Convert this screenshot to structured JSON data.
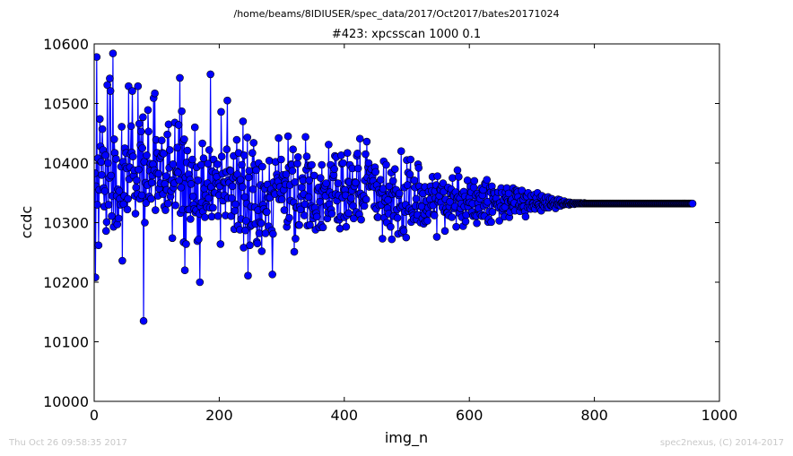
{
  "figure": {
    "suptitle": "/home/beams/8IDIUSER/spec_data/2017/Oct2017/bates20171024",
    "footer_left": "Thu Oct 26 09:58:35 2017",
    "footer_right": "spec2nexus, (C) 2014-2017"
  },
  "chart_data": {
    "type": "line",
    "title": "#423: xpcsscan 1000 0.1",
    "xlabel": "img_n",
    "ylabel": "ccdc",
    "xlim": [
      0,
      1000
    ],
    "ylim": [
      10000,
      10600
    ],
    "x_ticks": [
      0,
      200,
      400,
      600,
      800,
      1000
    ],
    "y_ticks": [
      10000,
      10100,
      10200,
      10300,
      10400,
      10500,
      10600
    ],
    "x_tick_labels": [
      "0",
      "200",
      "400",
      "600",
      "800",
      "1000"
    ],
    "y_tick_labels": [
      "10000",
      "10100",
      "10200",
      "10300",
      "10400",
      "10500",
      "10600"
    ],
    "grid": false,
    "legend": "none",
    "series": [
      {
        "color": "#0000ff",
        "marker": "circle",
        "x_start": 0,
        "x_step": 1,
        "y": [
          10262,
          10383,
          10208,
          10361,
          10578,
          10330,
          10408,
          10262,
          10355,
          10474,
          10428,
          10402,
          10380,
          10457,
          10422,
          10358,
          10327,
          10353,
          10413,
          10286,
          10301,
          10531,
          10400,
          10330,
          10375,
          10542,
          10521,
          10379,
          10311,
          10345,
          10584,
          10293,
          10440,
          10417,
          10301,
          10407,
          10345,
          10297,
          10356,
          10307,
          10353,
          10340,
          10330,
          10394,
          10461,
          10236,
          10402,
          10331,
          10345,
          10425,
          10394,
          10417,
          10391,
          10322,
          10340,
          10529,
          10373,
          10393,
          10415,
          10462,
          10418,
          10521,
          10411,
          10379,
          10388,
          10345,
          10315,
          10359,
          10371,
          10348,
          10529,
          10389,
          10466,
          10340,
          10430,
          10453,
          10346,
          10425,
          10477,
          10135,
          10402,
          10300,
          10367,
          10333,
          10413,
          10363,
          10489,
          10453,
          10344,
          10387,
          10399,
          10340,
          10367,
          10379,
          10398,
          10509,
          10388,
          10517,
          10321,
          10439,
          10383,
          10417,
          10345,
          10382,
          10357,
          10408,
          10366,
          10412,
          10438,
          10417,
          10348,
          10416,
          10327,
          10365,
          10321,
          10378,
          10355,
          10448,
          10332,
          10465,
          10392,
          10422,
          10344,
          10353,
          10371,
          10274,
          10398,
          10359,
          10366,
          10468,
          10329,
          10385,
          10386,
          10426,
          10384,
          10464,
          10371,
          10543,
          10316,
          10359,
          10487,
          10322,
          10436,
          10267,
          10440,
          10220,
          10376,
          10264,
          10401,
          10421,
          10322,
          10381,
          10322,
          10372,
          10306,
          10365,
          10397,
          10406,
          10344,
          10330,
          10323,
          10460,
          10317,
          10321,
          10393,
          10269,
          10371,
          10272,
          10315,
          10200,
          10327,
          10397,
          10334,
          10433,
          10319,
          10408,
          10357,
          10309,
          10346,
          10330,
          10326,
          10366,
          10399,
          10341,
          10422,
          10325,
          10549,
          10360,
          10310,
          10386,
          10325,
          10406,
          10350,
          10350,
          10383,
          10366,
          10377,
          10398,
          10311,
          10366,
          10346,
          10361,
          10264,
          10486,
          10411,
          10382,
          10337,
          10368,
          10346,
          10368,
          10312,
          10385,
          10423,
          10505,
          10341,
          10371,
          10367,
          10388,
          10387,
          10311,
          10341,
          10361,
          10375,
          10412,
          10289,
          10320,
          10331,
          10377,
          10439,
          10381,
          10295,
          10417,
          10370,
          10288,
          10372,
          10306,
          10397,
          10360,
          10470,
          10258,
          10413,
          10343,
          10287,
          10303,
          10332,
          10443,
          10211,
          10376,
          10387,
          10262,
          10294,
          10327,
          10296,
          10417,
          10356,
          10434,
          10397,
          10326,
          10298,
          10388,
          10268,
          10265,
          10321,
          10400,
          10282,
          10301,
          10363,
          10299,
          10252,
          10394,
          10330,
          10323,
          10360,
          10357,
          10282,
          10318,
          10318,
          10364,
          10342,
          10294,
          10404,
          10342,
          10353,
          10356,
          10287,
          10213,
          10281,
          10368,
          10350,
          10348,
          10402,
          10362,
          10381,
          10375,
          10369,
          10442,
          10339,
          10360,
          10350,
          10406,
          10339,
          10377,
          10380,
          10355,
          10321,
          10369,
          10364,
          10381,
          10293,
          10302,
          10445,
          10393,
          10308,
          10363,
          10337,
          10398,
          10397,
          10387,
          10423,
          10334,
          10251,
          10368,
          10273,
          10325,
          10326,
          10399,
          10410,
          10296,
          10296,
          10327,
          10322,
          10344,
          10359,
          10375,
          10371,
          10348,
          10312,
          10331,
          10444,
          10389,
          10411,
          10295,
          10396,
          10343,
          10371,
          10296,
          10396,
          10328,
          10397,
          10324,
          10307,
          10313,
          10379,
          10325,
          10288,
          10316,
          10310,
          10355,
          10354,
          10359,
          10292,
          10335,
          10375,
          10296,
          10397,
          10353,
          10292,
          10359,
          10357,
          10362,
          10345,
          10366,
          10328,
          10307,
          10317,
          10431,
          10331,
          10351,
          10397,
          10322,
          10315,
          10346,
          10376,
          10380,
          10390,
          10412,
          10348,
          10410,
          10337,
          10305,
          10366,
          10346,
          10305,
          10290,
          10310,
          10413,
          10399,
          10342,
          10400,
          10356,
          10309,
          10355,
          10346,
          10293,
          10312,
          10417,
          10369,
          10316,
          10368,
          10397,
          10336,
          10341,
          10354,
          10391,
          10328,
          10307,
          10361,
          10368,
          10367,
          10318,
          10412,
          10416,
          10391,
          10348,
          10314,
          10441,
          10349,
          10305,
          10343,
          10333,
          10331,
          10345,
          10328,
          10371,
          10415,
          10339,
          10436,
          10376,
          10393,
          10400,
          10360,
          10385,
          10371,
          10390,
          10361,
          10377,
          10370,
          10360,
          10327,
          10393,
          10385,
          10323,
          10363,
          10309,
          10309,
          10355,
          10329,
          10350,
          10372,
          10330,
          10351,
          10273,
          10357,
          10403,
          10308,
          10336,
          10342,
          10397,
          10300,
          10324,
          10338,
          10315,
          10361,
          10349,
          10293,
          10384,
          10272,
          10348,
          10370,
          10311,
          10353,
          10390,
          10349,
          10355,
          10322,
          10308,
          10281,
          10346,
          10349,
          10327,
          10325,
          10420,
          10283,
          10328,
          10289,
          10286,
          10359,
          10318,
          10330,
          10275,
          10405,
          10363,
          10384,
          10319,
          10324,
          10381,
          10406,
          10301,
          10321,
          10316,
          10312,
          10306,
          10371,
          10359,
          10328,
          10340,
          10305,
          10313,
          10398,
          10392,
          10361,
          10328,
          10300,
          10352,
          10327,
          10307,
          10349,
          10298,
          10314,
          10360,
          10302,
          10336,
          10320,
          10303,
          10325,
          10352,
          10315,
          10339,
          10361,
          10329,
          10353,
          10377,
          10329,
          10314,
          10312,
          10353,
          10341,
          10363,
          10276,
          10378,
          10335,
          10338,
          10345,
          10356,
          10355,
          10334,
          10362,
          10325,
          10366,
          10352,
          10318,
          10286,
          10339,
          10324,
          10317,
          10317,
          10359,
          10312,
          10327,
          10335,
          10349,
          10356,
          10309,
          10375,
          10347,
          10345,
          10324,
          10327,
          10351,
          10293,
          10341,
          10388,
          10343,
          10377,
          10316,
          10341,
          10324,
          10332,
          10309,
          10349,
          10294,
          10352,
          10327,
          10344,
          10302,
          10313,
          10335,
          10371,
          10327,
          10334,
          10342,
          10334,
          10361,
          10351,
          10318,
          10332,
          10311,
          10359,
          10370,
          10312,
          10346,
          10311,
          10299,
          10349,
          10333,
          10324,
          10345,
          10340,
          10314,
          10358,
          10311,
          10346,
          10355,
          10328,
          10311,
          10366,
          10364,
          10331,
          10372,
          10335,
          10301,
          10306,
          10319,
          10359,
          10351,
          10301,
          10361,
          10318,
          10340,
          10351,
          10349,
          10336,
          10331,
          10341,
          10331,
          10329,
          10351,
          10325,
          10303,
          10333,
          10327,
          10358,
          10350,
          10319,
          10324,
          10338,
          10310,
          10326,
          10351,
          10342,
          10358,
          10339,
          10335,
          10349,
          10309,
          10318,
          10336,
          10337,
          10339,
          10326,
          10358,
          10326,
          10333,
          10320,
          10354,
          10344,
          10354,
          10351,
          10343,
          10328,
          10330,
          10319,
          10336,
          10326,
          10354,
          10327,
          10339,
          10327,
          10344,
          10319,
          10310,
          10345,
          10344,
          10326,
          10350,
          10333,
          10327,
          10334,
          10323,
          10345,
          10328,
          10333,
          10332,
          10328,
          10347,
          10323,
          10331,
          10342,
          10333,
          10350,
          10331,
          10330,
          10326,
          10323,
          10343,
          10320,
          10345,
          10330,
          10329,
          10337,
          10326,
          10334,
          10342,
          10333,
          10325,
          10328,
          10343,
          10325,
          10335,
          10340,
          10329,
          10329,
          10340,
          10328,
          10334,
          10330,
          10337,
          10331,
          10324,
          10336,
          10331,
          10330,
          10339,
          10332,
          10329,
          10338,
          10328,
          10333,
          10334,
          10334,
          10330,
          10331,
          10336,
          10331,
          10333,
          10331,
          10332,
          10333,
          10334,
          10333,
          10330,
          10334,
          10331,
          10332,
          10333,
          10332,
          10332,
          10333,
          10331,
          10333,
          10332,
          10332,
          10333,
          10332,
          10332,
          10333,
          10332,
          10332,
          10333,
          10332,
          10332,
          10332,
          10332,
          10332,
          10333,
          10332,
          10332,
          10332,
          10332,
          10332,
          10332,
          10332,
          10332,
          10332,
          10332,
          10332,
          10332,
          10332,
          10332,
          10332,
          10332,
          10332,
          10332,
          10332,
          10332,
          10332,
          10332,
          10332,
          10332,
          10332,
          10332,
          10332,
          10332,
          10332,
          10332,
          10332,
          10332,
          10332,
          10332,
          10332,
          10332,
          10332,
          10332,
          10332,
          10332,
          10332,
          10332,
          10332,
          10332,
          10332,
          10332,
          10332,
          10332,
          10332,
          10332,
          10332,
          10332,
          10332,
          10332,
          10332,
          10332,
          10332,
          10332,
          10332,
          10332,
          10332,
          10332,
          10332,
          10332,
          10332,
          10332,
          10332,
          10332,
          10332,
          10332,
          10332,
          10332,
          10332,
          10332,
          10332,
          10332,
          10332,
          10332,
          10332,
          10332,
          10332,
          10332,
          10332,
          10332,
          10332,
          10332,
          10332,
          10332,
          10332,
          10332,
          10332,
          10332,
          10332,
          10332,
          10332,
          10332,
          10332,
          10332,
          10332,
          10332,
          10332,
          10332,
          10332,
          10332,
          10332,
          10332,
          10332,
          10332,
          10332,
          10332,
          10332,
          10332,
          10332,
          10332,
          10332,
          10332,
          10332,
          10332,
          10332,
          10332,
          10332,
          10332,
          10332,
          10332,
          10332,
          10332,
          10332,
          10332,
          10332,
          10332,
          10332,
          10332,
          10332,
          10332,
          10332,
          10332,
          10332,
          10332,
          10332,
          10332,
          10332,
          10332,
          10332,
          10332,
          10332,
          10332,
          10332,
          10332,
          10332,
          10332,
          10332,
          10332,
          10332,
          10332,
          10332,
          10332,
          10332,
          10332,
          10332,
          10332,
          10332,
          10332,
          10332,
          10332,
          10332,
          10332,
          10332,
          10332,
          10332,
          10332,
          10332,
          10332,
          10332
        ]
      }
    ]
  }
}
